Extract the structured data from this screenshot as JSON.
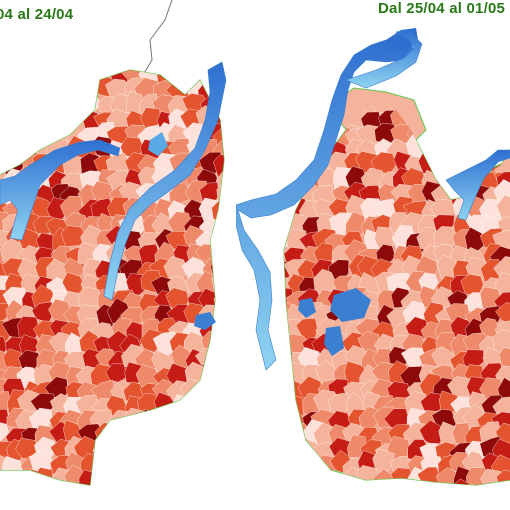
{
  "panels": [
    {
      "title": "04 al 24/04"
    },
    {
      "title": "Dal 25/04 al 01/05"
    }
  ],
  "colors": {
    "water": "#2e86d6",
    "water_light": "#7fc6ef",
    "border": "#5cc94a",
    "bins": [
      "#fde2dc",
      "#f6b39b",
      "#ee8a69",
      "#e4542f",
      "#c51d16",
      "#8e0a0a"
    ]
  }
}
